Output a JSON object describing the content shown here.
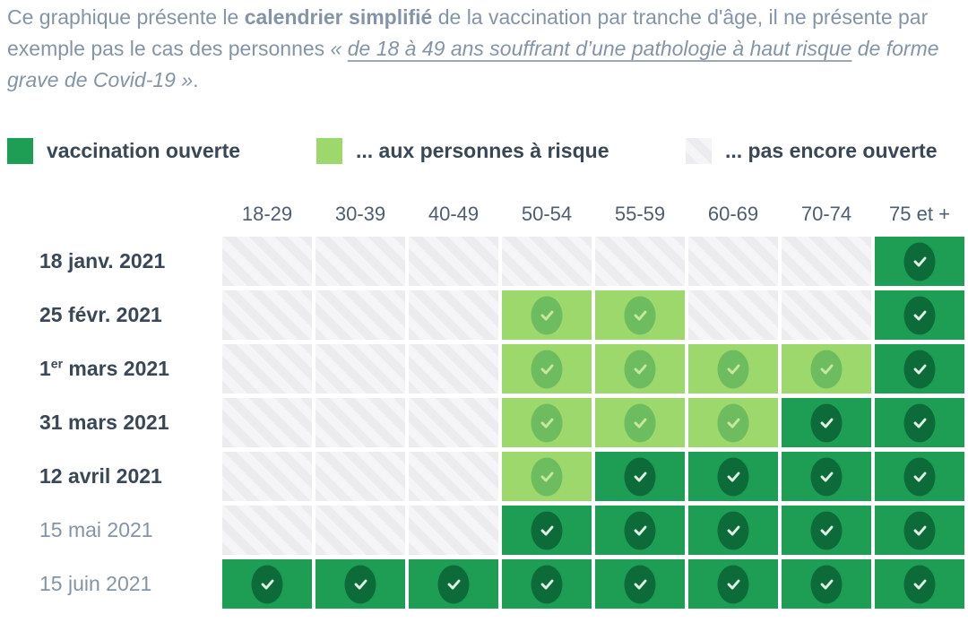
{
  "intro": {
    "part1": "Ce graphique présente le ",
    "bold": "calendrier simplifié",
    "part2": " de la vaccination par tranche d'âge, il ne présente par exemple pas le cas des personnes ",
    "quote_open": "« ",
    "link_text": "de 18 à 49 ans souffrant d’une pathologie à haut risque",
    "quote_close": " de forme grave de Covid-19 »",
    "period": "."
  },
  "legend": {
    "items": [
      {
        "label": "vaccination ouverte",
        "state": "open"
      },
      {
        "label": "... aux personnes à risque",
        "state": "risk"
      },
      {
        "label": "... pas encore ouverte",
        "state": "closed"
      }
    ]
  },
  "chart_data": {
    "type": "heatmap",
    "title": "Calendrier simplifié de la vaccination par tranche d'âge",
    "columns": [
      "18-29",
      "30-39",
      "40-49",
      "50-54",
      "55-59",
      "60-69",
      "70-74",
      "75 et +"
    ],
    "rows": [
      {
        "label_parts": [
          "18 janv. 2021"
        ],
        "emphasis": true,
        "cells": [
          "closed",
          "closed",
          "closed",
          "closed",
          "closed",
          "closed",
          "closed",
          "open"
        ]
      },
      {
        "label_parts": [
          "25 févr. 2021"
        ],
        "emphasis": true,
        "cells": [
          "closed",
          "closed",
          "closed",
          "risk",
          "risk",
          "closed",
          "closed",
          "open"
        ]
      },
      {
        "label_parts": [
          "1",
          {
            "sup": "er"
          },
          " mars 2021"
        ],
        "emphasis": true,
        "cells": [
          "closed",
          "closed",
          "closed",
          "risk",
          "risk",
          "risk",
          "risk",
          "open"
        ]
      },
      {
        "label_parts": [
          "31 mars 2021"
        ],
        "emphasis": true,
        "cells": [
          "closed",
          "closed",
          "closed",
          "risk",
          "risk",
          "risk",
          "open",
          "open"
        ]
      },
      {
        "label_parts": [
          "12 avril 2021"
        ],
        "emphasis": true,
        "cells": [
          "closed",
          "closed",
          "closed",
          "risk",
          "open",
          "open",
          "open",
          "open"
        ]
      },
      {
        "label_parts": [
          "15 mai 2021"
        ],
        "emphasis": false,
        "cells": [
          "closed",
          "closed",
          "closed",
          "open",
          "open",
          "open",
          "open",
          "open"
        ]
      },
      {
        "label_parts": [
          "15 juin 2021"
        ],
        "emphasis": false,
        "cells": [
          "open",
          "open",
          "open",
          "open",
          "open",
          "open",
          "open",
          "open"
        ]
      }
    ],
    "states": {
      "open": {
        "label": "vaccination ouverte",
        "color": "#1e9e55",
        "check_circle": "#0c6b38",
        "check": "#ddf0e4"
      },
      "risk": {
        "label": "... aux personnes à risque",
        "color": "#9cd86c",
        "check_circle": "#6dbd60",
        "check": "#c6e89c"
      },
      "closed": {
        "label": "... pas encore ouverte",
        "color": "#ececee",
        "stripe": "#f5f5f7"
      }
    },
    "legend_position": "top",
    "grid": "off"
  }
}
